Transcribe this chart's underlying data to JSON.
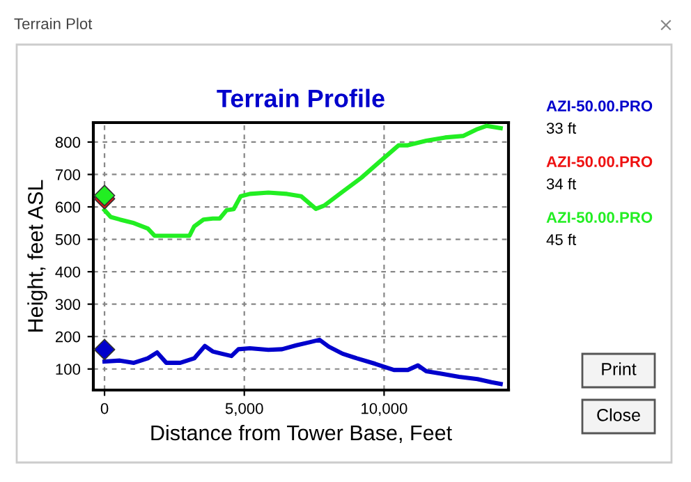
{
  "chart_data": {
    "type": "line",
    "title": "Terrain Profile",
    "xlabel": "Distance from Tower Base, Feet",
    "ylabel": "Height, feet ASL",
    "xlim": [
      -400,
      14450
    ],
    "ylim": [
      35,
      860
    ],
    "xticks": [
      0,
      {
        "value": 5000,
        "label": "5,000"
      },
      {
        "value": 10000,
        "label": "10,000"
      }
    ],
    "yticks": [
      100,
      200,
      300,
      400,
      500,
      600,
      700,
      800
    ],
    "grid": true,
    "legend": "right",
    "line_style": "solid",
    "series": [
      {
        "name": "AZI-50.00.PRO",
        "color": "#0000cc",
        "x": [
          0,
          550,
          1050,
          1550,
          1880,
          2210,
          2710,
          3210,
          3590,
          3870,
          4200,
          4540,
          4790,
          5200,
          5860,
          6350,
          6860,
          7360,
          7690,
          8020,
          8520,
          9020,
          9680,
          10350,
          10850,
          11210,
          11510,
          12010,
          12680,
          13340,
          13840,
          14170
        ],
        "values": [
          123,
          126,
          119,
          133,
          151,
          119,
          119,
          133,
          171,
          154,
          147,
          140,
          161,
          164,
          159,
          161,
          173,
          183,
          190,
          169,
          147,
          133,
          116,
          97,
          97,
          111,
          93,
          86,
          76,
          69,
          59,
          54
        ]
      },
      {
        "name": "AZI-50.00.PRO",
        "color": "#ee1111",
        "type": "scatter",
        "marker": "diamond",
        "x": [
          0
        ],
        "values": [
          625
        ]
      },
      {
        "name": "AZI-50.00.PRO",
        "color": "#22ee22",
        "x": [
          0,
          220,
          550,
          1050,
          1550,
          1790,
          2210,
          3040,
          3210,
          3540,
          3870,
          4120,
          4370,
          4620,
          4870,
          5200,
          5860,
          6530,
          7030,
          7560,
          7860,
          8520,
          9190,
          9850,
          10520,
          10850,
          11510,
          12180,
          12840,
          13340,
          13670,
          14170
        ],
        "values": [
          590,
          569,
          561,
          550,
          533,
          511,
          511,
          511,
          540,
          561,
          564,
          564,
          590,
          593,
          633,
          640,
          644,
          640,
          633,
          594,
          604,
          647,
          690,
          740,
          790,
          790,
          804,
          814,
          819,
          840,
          850,
          843
        ]
      },
      {
        "color": "#0000cc",
        "type": "scatter",
        "marker": "diamond",
        "x": [
          0
        ],
        "values": [
          160
        ]
      },
      {
        "color": "#22ee22",
        "type": "scatter",
        "marker": "diamond",
        "x": [
          0
        ],
        "values": [
          635
        ]
      }
    ],
    "annotations": [
      "33 ft",
      "34 ft",
      "45 ft",
      "Terrain Plot",
      "Print",
      "Close"
    ]
  }
}
